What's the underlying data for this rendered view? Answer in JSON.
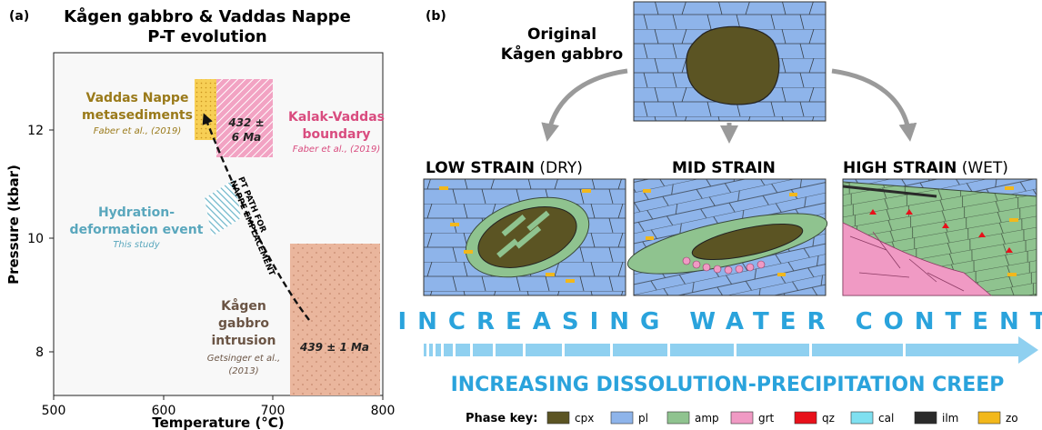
{
  "panel_a": {
    "label": "(a)",
    "title_line1": "Kågen gabbro & Vaddas Nappe",
    "title_line2": "P-T evolution",
    "xlabel": "Temperature (°C)",
    "ylabel": "Pressure (kbar)",
    "xticks": [
      "500",
      "600",
      "700",
      "800"
    ],
    "yticks": [
      "8",
      "10",
      "12"
    ],
    "vaddas_line1": "Vaddas Nappe",
    "vaddas_line2": "metasediments",
    "vaddas_ref": "Faber et al., (2019)",
    "kalak_line1": "Kalak-Vaddas",
    "kalak_line2": "boundary",
    "kalak_ref": "Faber et al., (2019)",
    "age_432_line1": "432 ±",
    "age_432_line2": "6 Ma",
    "hydration_line1": "Hydration-",
    "hydration_line2": "deformation event",
    "hydration_ref": "This study",
    "kagen_line1": "Kågen",
    "kagen_line2": "gabbro",
    "kagen_line3": "intrusion",
    "kagen_ref_line1": "Getsinger et al.,",
    "kagen_ref_line2": "(2013)",
    "age_439": "439 ± 1 Ma",
    "path_line1": "PT PATH FOR",
    "path_line2": "NAPPE EMPLACEMENT",
    "colors": {
      "vaddas": "#f5c842",
      "kalak": "#e0508a",
      "hydration": "#6bb5c9",
      "kagen": "#e8b49a",
      "vaddas_text": "#9a7a1a",
      "kalak_text": "#d94c7f",
      "hydration_text": "#5aa7bd",
      "kagen_text": "#6b5545"
    }
  },
  "panel_b": {
    "label": "(b)",
    "original_line1": "Original",
    "original_line2": "Kågen gabbro",
    "low_bold": "LOW STRAIN",
    "low_paren": " (DRY)",
    "mid_bold": "MID STRAIN",
    "high_bold": "HIGH STRAIN",
    "high_paren": " (WET)",
    "water": "INCREASING WATER CONTENT",
    "creep": "INCREASING DISSOLUTION-PRECIPITATION CREEP",
    "key_label": "Phase key:",
    "phases": [
      {
        "name": "cpx",
        "color": "#5b5423"
      },
      {
        "name": "pl",
        "color": "#8eb4ea"
      },
      {
        "name": "amp",
        "color": "#8fc38f"
      },
      {
        "name": "grt",
        "color": "#f09ac4"
      },
      {
        "name": "qz",
        "color": "#e8101a"
      },
      {
        "name": "cal",
        "color": "#7fe0f0"
      },
      {
        "name": "ilm",
        "color": "#2a2a2a"
      },
      {
        "name": "zo",
        "color": "#f2b81c"
      }
    ],
    "accent": "#2aa3dc"
  }
}
